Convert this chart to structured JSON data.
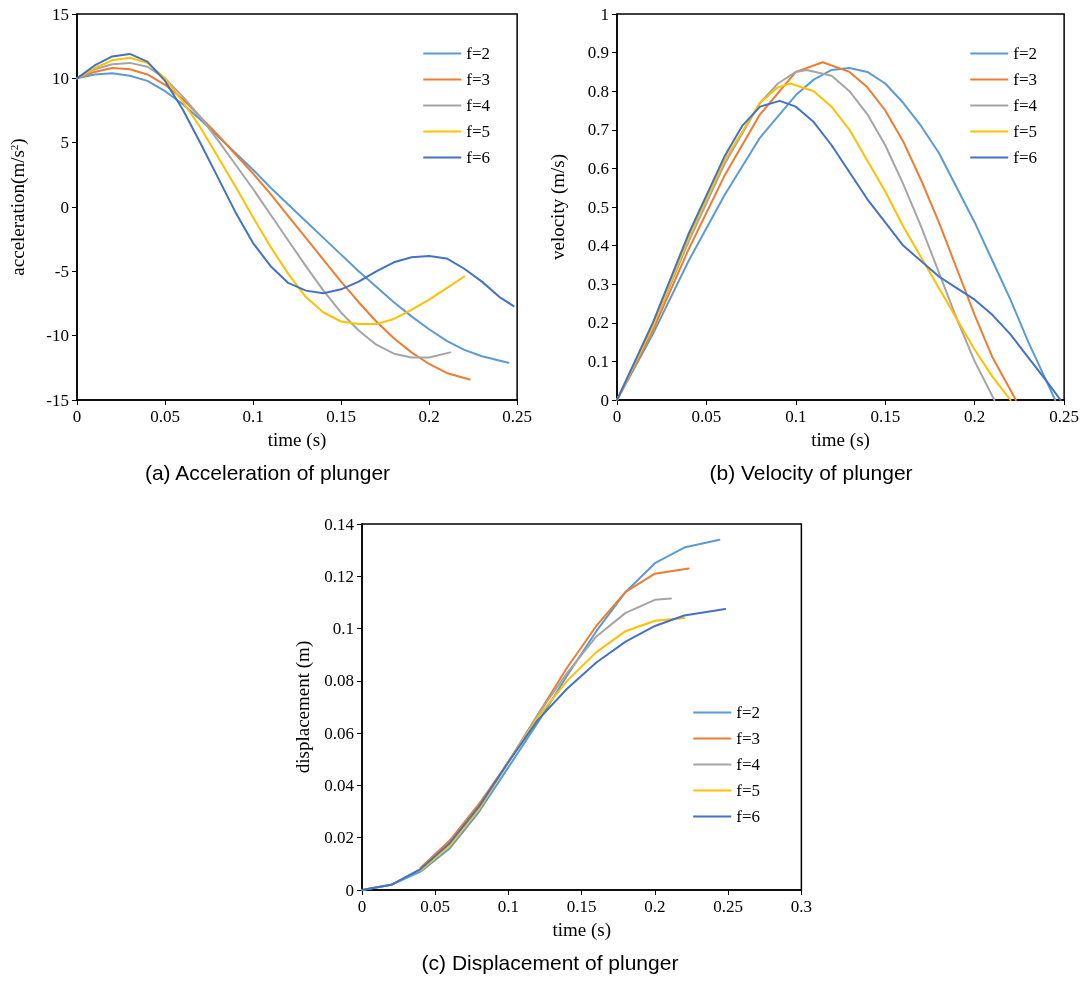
{
  "chart_data": [
    {
      "type": "line",
      "title": "(a) Acceleration of plunger",
      "xlabel": "time (s)",
      "ylabel": "acceleration(m/s$^{2}$)",
      "xlim": [
        0,
        0.25
      ],
      "xticks": [
        0,
        0.05,
        0.1,
        0.15,
        0.2,
        0.25
      ],
      "ylim": [
        -15,
        15
      ],
      "yticks": [
        -15,
        -10,
        -5,
        0,
        5,
        10,
        15
      ],
      "grid": false,
      "legend": "top right",
      "marker": "none",
      "line_style": "solid",
      "series": [
        {
          "name": "f=2",
          "color": "#5b9bd5",
          "x": [
            0,
            0.01,
            0.02,
            0.03,
            0.04,
            0.05,
            0.06,
            0.07,
            0.08,
            0.09,
            0.1,
            0.11,
            0.12,
            0.13,
            0.14,
            0.15,
            0.16,
            0.17,
            0.18,
            0.19,
            0.2,
            0.21,
            0.22,
            0.23,
            0.245
          ],
          "values": [
            10,
            10.3,
            10.4,
            10.2,
            9.8,
            9.0,
            8.0,
            6.8,
            5.5,
            4.2,
            2.9,
            1.5,
            0.2,
            -1.1,
            -2.4,
            -3.7,
            -5.0,
            -6.2,
            -7.4,
            -8.5,
            -9.5,
            -10.4,
            -11.1,
            -11.6,
            -12.1
          ]
        },
        {
          "name": "f=3",
          "color": "#ed7d31",
          "x": [
            0,
            0.01,
            0.02,
            0.03,
            0.04,
            0.05,
            0.06,
            0.07,
            0.08,
            0.09,
            0.1,
            0.11,
            0.12,
            0.13,
            0.14,
            0.15,
            0.16,
            0.17,
            0.18,
            0.19,
            0.2,
            0.21,
            0.223
          ],
          "values": [
            10,
            10.5,
            10.8,
            10.7,
            10.3,
            9.5,
            8.4,
            7.0,
            5.6,
            4.1,
            2.6,
            1.0,
            -0.7,
            -2.4,
            -4.1,
            -5.8,
            -7.4,
            -8.9,
            -10.2,
            -11.3,
            -12.2,
            -12.9,
            -13.4
          ]
        },
        {
          "name": "f=4",
          "color": "#a5a5a5",
          "x": [
            0,
            0.01,
            0.02,
            0.03,
            0.04,
            0.05,
            0.06,
            0.07,
            0.08,
            0.09,
            0.1,
            0.11,
            0.12,
            0.13,
            0.14,
            0.15,
            0.16,
            0.17,
            0.18,
            0.19,
            0.2,
            0.212
          ],
          "values": [
            10,
            10.7,
            11.1,
            11.2,
            10.9,
            10.0,
            8.6,
            7.0,
            5.2,
            3.3,
            1.4,
            -0.6,
            -2.6,
            -4.6,
            -6.5,
            -8.2,
            -9.6,
            -10.7,
            -11.4,
            -11.7,
            -11.7,
            -11.3
          ]
        },
        {
          "name": "f=5",
          "color": "#ffc000",
          "x": [
            0,
            0.01,
            0.02,
            0.03,
            0.04,
            0.05,
            0.06,
            0.07,
            0.08,
            0.09,
            0.1,
            0.11,
            0.12,
            0.13,
            0.14,
            0.15,
            0.16,
            0.17,
            0.18,
            0.19,
            0.2,
            0.21,
            0.22
          ],
          "values": [
            10,
            10.8,
            11.4,
            11.6,
            11.2,
            10.0,
            8.2,
            6.2,
            3.9,
            1.6,
            -0.8,
            -3.1,
            -5.2,
            -7.0,
            -8.2,
            -8.9,
            -9.1,
            -9.1,
            -8.7,
            -8.0,
            -7.2,
            -6.3,
            -5.4
          ]
        },
        {
          "name": "f=6",
          "color": "#4472c4",
          "x": [
            0,
            0.01,
            0.02,
            0.03,
            0.04,
            0.05,
            0.06,
            0.07,
            0.08,
            0.09,
            0.1,
            0.11,
            0.12,
            0.13,
            0.14,
            0.15,
            0.16,
            0.17,
            0.18,
            0.19,
            0.2,
            0.21,
            0.22,
            0.23,
            0.24,
            0.248
          ],
          "values": [
            10,
            11.0,
            11.7,
            11.9,
            11.3,
            9.8,
            7.6,
            5.0,
            2.3,
            -0.4,
            -2.8,
            -4.6,
            -5.9,
            -6.5,
            -6.7,
            -6.4,
            -5.8,
            -5.0,
            -4.3,
            -3.9,
            -3.8,
            -4.0,
            -4.8,
            -5.8,
            -7.0,
            -7.7
          ]
        }
      ]
    },
    {
      "type": "line",
      "title": "(b) Velocity of plunger",
      "xlabel": "time (s)",
      "ylabel": "velocity (m/s)",
      "xlim": [
        0,
        0.25
      ],
      "xticks": [
        0,
        0.05,
        0.1,
        0.15,
        0.2,
        0.25
      ],
      "ylim": [
        0,
        1
      ],
      "yticks": [
        0,
        0.1,
        0.2,
        0.3,
        0.4,
        0.5,
        0.6,
        0.7,
        0.8,
        0.9,
        1
      ],
      "grid": false,
      "legend": "top right",
      "marker": "none",
      "line_style": "solid",
      "series": [
        {
          "name": "f=2",
          "color": "#5b9bd5",
          "x": [
            0,
            0.02,
            0.04,
            0.06,
            0.08,
            0.1,
            0.11,
            0.12,
            0.13,
            0.14,
            0.15,
            0.16,
            0.17,
            0.18,
            0.19,
            0.2,
            0.21,
            0.22,
            0.23,
            0.24,
            0.245
          ],
          "values": [
            0,
            0.17,
            0.36,
            0.53,
            0.68,
            0.79,
            0.83,
            0.855,
            0.86,
            0.85,
            0.82,
            0.77,
            0.71,
            0.64,
            0.55,
            0.46,
            0.36,
            0.26,
            0.15,
            0.05,
            0
          ]
        },
        {
          "name": "f=3",
          "color": "#ed7d31",
          "x": [
            0,
            0.02,
            0.04,
            0.06,
            0.08,
            0.1,
            0.115,
            0.13,
            0.14,
            0.15,
            0.16,
            0.17,
            0.18,
            0.19,
            0.2,
            0.21,
            0.223
          ],
          "values": [
            0,
            0.18,
            0.39,
            0.58,
            0.74,
            0.85,
            0.875,
            0.85,
            0.81,
            0.75,
            0.67,
            0.57,
            0.46,
            0.34,
            0.22,
            0.11,
            0
          ]
        },
        {
          "name": "f=4",
          "color": "#a5a5a5",
          "x": [
            0,
            0.02,
            0.04,
            0.06,
            0.08,
            0.09,
            0.1,
            0.106,
            0.12,
            0.13,
            0.14,
            0.15,
            0.16,
            0.17,
            0.18,
            0.19,
            0.2,
            0.211
          ],
          "values": [
            0,
            0.19,
            0.41,
            0.61,
            0.77,
            0.82,
            0.85,
            0.855,
            0.84,
            0.8,
            0.74,
            0.66,
            0.56,
            0.45,
            0.33,
            0.21,
            0.1,
            0
          ]
        },
        {
          "name": "f=5",
          "color": "#ffc000",
          "x": [
            0,
            0.02,
            0.04,
            0.06,
            0.08,
            0.09,
            0.097,
            0.11,
            0.12,
            0.13,
            0.14,
            0.15,
            0.16,
            0.17,
            0.18,
            0.19,
            0.2,
            0.21,
            0.22
          ],
          "values": [
            0,
            0.19,
            0.42,
            0.62,
            0.77,
            0.81,
            0.82,
            0.8,
            0.76,
            0.7,
            0.62,
            0.54,
            0.45,
            0.37,
            0.29,
            0.21,
            0.13,
            0.06,
            0
          ]
        },
        {
          "name": "f=6",
          "color": "#4472c4",
          "x": [
            0,
            0.02,
            0.04,
            0.06,
            0.07,
            0.08,
            0.091,
            0.1,
            0.11,
            0.12,
            0.13,
            0.14,
            0.15,
            0.16,
            0.17,
            0.18,
            0.19,
            0.2,
            0.21,
            0.22,
            0.23,
            0.24,
            0.248
          ],
          "values": [
            0,
            0.2,
            0.43,
            0.63,
            0.71,
            0.76,
            0.775,
            0.76,
            0.72,
            0.66,
            0.59,
            0.52,
            0.46,
            0.4,
            0.36,
            0.32,
            0.29,
            0.26,
            0.22,
            0.17,
            0.11,
            0.05,
            0
          ]
        }
      ]
    },
    {
      "type": "line",
      "title": "(c) Displacement of plunger",
      "xlabel": "time (s)",
      "ylabel": "displacement (m)",
      "xlim": [
        0,
        0.3
      ],
      "xticks": [
        0,
        0.05,
        0.1,
        0.15,
        0.2,
        0.25,
        0.3
      ],
      "ylim": [
        0,
        0.14
      ],
      "yticks": [
        0,
        0.02,
        0.04,
        0.06,
        0.08,
        0.1,
        0.12,
        0.14
      ],
      "grid": false,
      "legend": "bottom right",
      "marker": "none",
      "line_style": "solid",
      "series": [
        {
          "name": "f=2",
          "color": "#5b9bd5",
          "x": [
            0,
            0.02,
            0.04,
            0.06,
            0.08,
            0.1,
            0.12,
            0.14,
            0.16,
            0.18,
            0.2,
            0.22,
            0.244
          ],
          "values": [
            0,
            0.002,
            0.007,
            0.016,
            0.03,
            0.047,
            0.064,
            0.082,
            0.099,
            0.114,
            0.125,
            0.131,
            0.134
          ]
        },
        {
          "name": "f=3",
          "color": "#ed7d31",
          "x": [
            0.04,
            0.06,
            0.08,
            0.1,
            0.12,
            0.14,
            0.16,
            0.18,
            0.2,
            0.223
          ],
          "values": [
            0.0085,
            0.019,
            0.033,
            0.049,
            0.067,
            0.085,
            0.101,
            0.114,
            0.121,
            0.123
          ]
        },
        {
          "name": "f=4",
          "color": "#a5a5a5",
          "x": [
            0,
            0.02,
            0.04,
            0.06,
            0.08,
            0.1,
            0.12,
            0.14,
            0.16,
            0.18,
            0.2,
            0.211
          ],
          "values": [
            0,
            0.002,
            0.008,
            0.018,
            0.032,
            0.049,
            0.067,
            0.083,
            0.097,
            0.106,
            0.111,
            0.1115
          ]
        },
        {
          "name": "f=5",
          "color": "#ffc000",
          "x": [
            0.04,
            0.06,
            0.08,
            0.1,
            0.12,
            0.14,
            0.16,
            0.18,
            0.2,
            0.22
          ],
          "values": [
            0.0075,
            0.017,
            0.031,
            0.049,
            0.066,
            0.08,
            0.091,
            0.099,
            0.103,
            0.104
          ]
        },
        {
          "name": "f=6",
          "color": "#4472c4",
          "x": [
            0,
            0.02,
            0.04,
            0.06,
            0.08,
            0.1,
            0.12,
            0.14,
            0.16,
            0.18,
            0.2,
            0.22,
            0.248
          ],
          "values": [
            0,
            0.002,
            0.008,
            0.018,
            0.032,
            0.049,
            0.065,
            0.077,
            0.087,
            0.095,
            0.101,
            0.105,
            0.1075
          ]
        }
      ]
    }
  ]
}
